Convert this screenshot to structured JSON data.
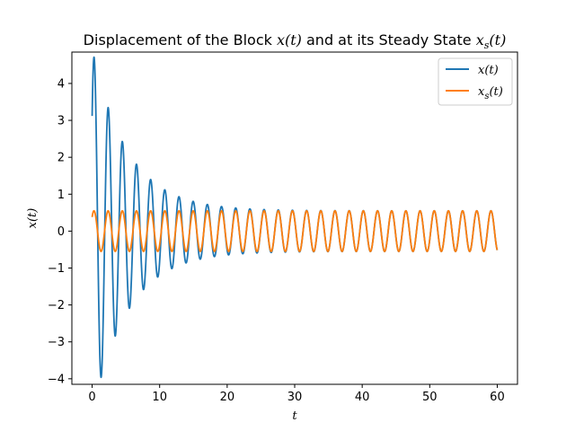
{
  "chart_data": {
    "type": "line",
    "title": {
      "prefix": "Displacement of the Block ",
      "math1": "x(t)",
      "middle": " and at its Steady State ",
      "math2_base": "x",
      "math2_sub": "s",
      "math2_arg": "(t)"
    },
    "xlabel": "t",
    "ylabel": "x(t)",
    "xlim": [
      -3,
      63
    ],
    "ylim": [
      -4.15,
      4.85
    ],
    "xticks": [
      0,
      10,
      20,
      30,
      40,
      50,
      60
    ],
    "yticks": [
      -4,
      -3,
      -2,
      -1,
      0,
      1,
      2,
      3,
      4
    ],
    "legend_position": "top-right",
    "series": [
      {
        "name": "x(t)",
        "legend_base": "x",
        "legend_sub": "",
        "legend_arg": "(t)",
        "color": "#1f77b4",
        "model": "transient-plus-steady",
        "t_range": [
          0,
          60
        ],
        "x0": 3.12,
        "peak": {
          "t": 0.15,
          "x": 4.38
        },
        "trough": {
          "t": 1.2,
          "x": -3.73
        },
        "settles_by_t": 20
      },
      {
        "name": "x_s(t)",
        "legend_base": "x",
        "legend_sub": "s",
        "legend_arg": "(t)",
        "color": "#ff7f0e",
        "model": "steady-state",
        "t_range": [
          0,
          60
        ],
        "amplitude": 0.55,
        "period": 2.1,
        "x0": 0.38
      }
    ]
  }
}
